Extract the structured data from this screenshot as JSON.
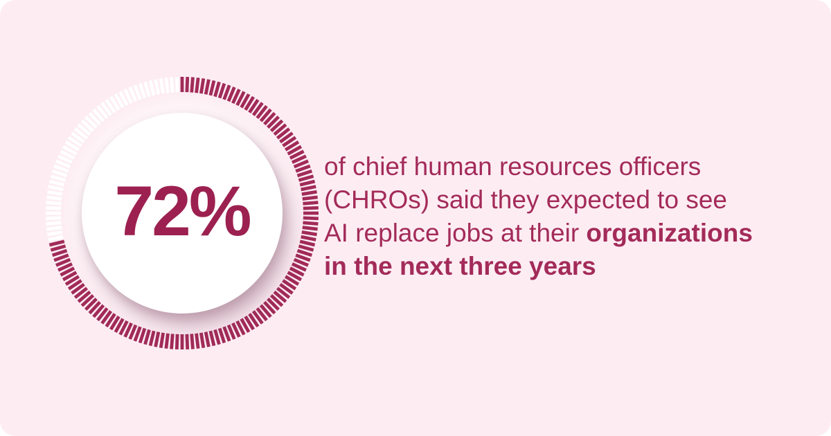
{
  "card": {
    "background": "#fdedf3",
    "corner_radius": 22
  },
  "gauge": {
    "percent": 72,
    "label": "72%",
    "tick_count": 160,
    "filled_ticks": 115,
    "start_angle": "top",
    "direction": "clockwise",
    "tick_outer_radius": 197,
    "tick_inner_radius": 175,
    "tick_stroke_width": 4.8,
    "colors": {
      "filled_tick": "#a12b57",
      "unfilled_tick": "#ffffff",
      "center_circle": "#ffffff",
      "value_text": "#9c2150"
    }
  },
  "stat": {
    "value_label": "72%",
    "text_color": "#a32b59",
    "lines": [
      [
        {
          "text": "of chief human resources officers",
          "bold": false
        }
      ],
      [
        {
          "text": "(CHROs) said they expected to see",
          "bold": false
        }
      ],
      [
        {
          "text": "AI replace jobs at their ",
          "bold": false
        },
        {
          "text": "organizations",
          "bold": true
        }
      ],
      [
        {
          "text": "in the next three years",
          "bold": true
        }
      ]
    ],
    "full_text": "of chief human resources officers (CHROs) said they expected to see AI replace jobs at their organizations in the next three years"
  },
  "chart_data": {
    "type": "pie",
    "variant": "radial-tick-gauge",
    "title": "",
    "categories": [
      "CHROs expecting AI to replace jobs at their organizations in the next three years",
      "Remainder"
    ],
    "values": [
      72,
      28
    ],
    "unit": "%",
    "center_label": "72%",
    "annotation": "of chief human resources officers (CHROs) said they expected to see AI replace jobs at their organizations in the next three years",
    "colors": [
      "#a12b57",
      "#ffffff"
    ],
    "legend": "none",
    "start_angle": "top",
    "direction": "clockwise",
    "tick_count": 160,
    "filled_tick_count": 115
  }
}
